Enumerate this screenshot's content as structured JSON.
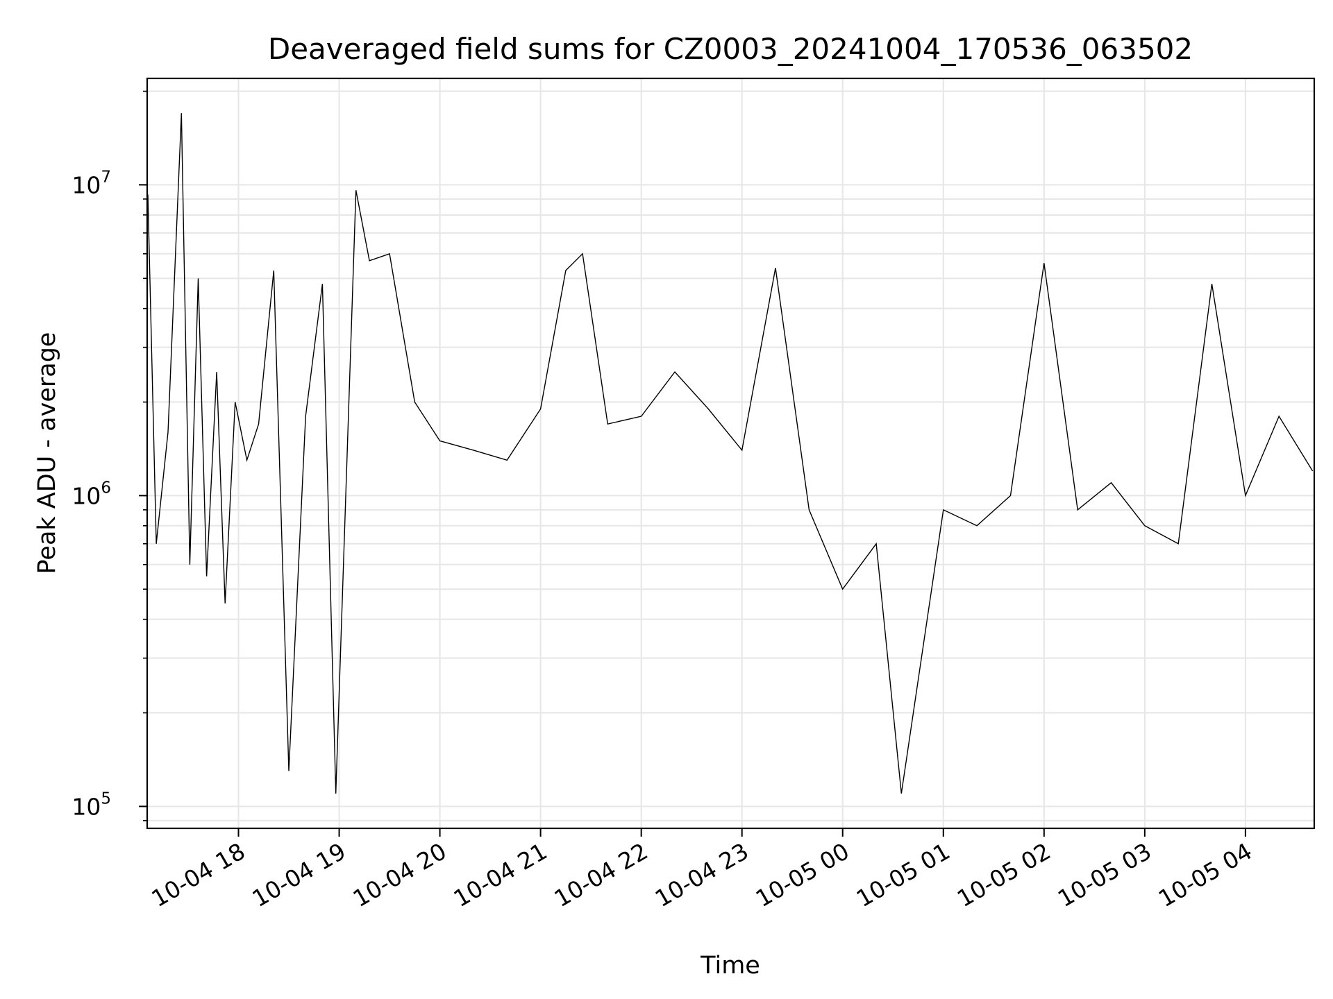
{
  "chart_data": {
    "type": "line",
    "title": "Deaveraged field sums for CZ0003_20241004_170536_063502",
    "xlabel": "Time",
    "ylabel": "Peak ADU - average",
    "yscale": "log",
    "ylim": [
      85000,
      22000000
    ],
    "xlim": [
      "2024-10-04 17:05:36",
      "2024-10-05 04:41:00"
    ],
    "grid": true,
    "line_color": "#000000",
    "x_ticks": [
      {
        "t": "2024-10-04 18:00",
        "label": "10-04 18"
      },
      {
        "t": "2024-10-04 19:00",
        "label": "10-04 19"
      },
      {
        "t": "2024-10-04 20:00",
        "label": "10-04 20"
      },
      {
        "t": "2024-10-04 21:00",
        "label": "10-04 21"
      },
      {
        "t": "2024-10-04 22:00",
        "label": "10-04 22"
      },
      {
        "t": "2024-10-04 23:00",
        "label": "10-04 23"
      },
      {
        "t": "2024-10-05 00:00",
        "label": "10-05 00"
      },
      {
        "t": "2024-10-05 01:00",
        "label": "10-05 01"
      },
      {
        "t": "2024-10-05 02:00",
        "label": "10-05 02"
      },
      {
        "t": "2024-10-05 03:00",
        "label": "10-05 03"
      },
      {
        "t": "2024-10-05 04:00",
        "label": "10-05 04"
      }
    ],
    "y_ticks": [
      {
        "value": 100000,
        "base": "10",
        "exp": "5"
      },
      {
        "value": 1000000,
        "base": "10",
        "exp": "6"
      },
      {
        "value": 10000000,
        "base": "10",
        "exp": "7"
      }
    ],
    "series": [
      {
        "x": [
          "2024-10-04 17:06",
          "2024-10-04 17:11",
          "2024-10-04 17:18",
          "2024-10-04 17:26",
          "2024-10-04 17:31",
          "2024-10-04 17:36",
          "2024-10-04 17:41",
          "2024-10-04 17:47",
          "2024-10-04 17:52",
          "2024-10-04 17:58",
          "2024-10-04 18:05",
          "2024-10-04 18:12",
          "2024-10-04 18:21",
          "2024-10-04 18:30",
          "2024-10-04 18:40",
          "2024-10-04 18:50",
          "2024-10-04 18:58",
          "2024-10-04 19:10",
          "2024-10-04 19:18",
          "2024-10-04 19:30",
          "2024-10-04 19:45",
          "2024-10-04 20:00",
          "2024-10-04 20:20",
          "2024-10-04 20:40",
          "2024-10-04 21:00",
          "2024-10-04 21:15",
          "2024-10-04 21:25",
          "2024-10-04 21:40",
          "2024-10-04 22:00",
          "2024-10-04 22:20",
          "2024-10-04 22:40",
          "2024-10-04 23:00",
          "2024-10-04 23:20",
          "2024-10-04 23:40",
          "2024-10-05 00:00",
          "2024-10-05 00:20",
          "2024-10-05 00:35",
          "2024-10-05 01:00",
          "2024-10-05 01:20",
          "2024-10-05 01:40",
          "2024-10-05 02:00",
          "2024-10-05 02:20",
          "2024-10-05 02:40",
          "2024-10-05 03:00",
          "2024-10-05 03:20",
          "2024-10-05 03:40",
          "2024-10-05 04:00",
          "2024-10-05 04:20",
          "2024-10-05 04:40"
        ],
        "y": [
          9300000,
          700000,
          1600000,
          17000000,
          600000,
          5000000,
          550000,
          2500000,
          450000,
          2000000,
          1300000,
          1700000,
          5300000,
          130000,
          1800000,
          4800000,
          110000,
          9600000,
          5700000,
          6000000,
          2000000,
          1500000,
          1400000,
          1300000,
          1900000,
          5300000,
          6000000,
          1700000,
          1800000,
          2500000,
          1900000,
          1400000,
          5400000,
          900000,
          500000,
          700000,
          110000,
          900000,
          800000,
          1000000,
          5600000,
          900000,
          1100000,
          800000,
          700000,
          4800000,
          1000000,
          1800000,
          1200000
        ]
      }
    ]
  }
}
